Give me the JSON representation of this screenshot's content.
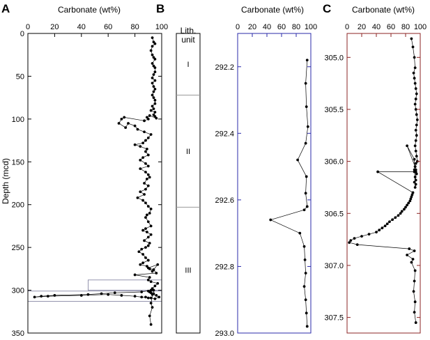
{
  "panel_labels": {
    "a": "A",
    "b": "B",
    "c": "C"
  },
  "colors": {
    "panel_a": "#000000",
    "panel_b": "#2a2aaa",
    "panel_c": "#8b2323"
  },
  "lith": {
    "header_line1": "Lith.",
    "header_line2": "unit",
    "units": [
      {
        "label": "I",
        "top": 0,
        "bottom": 72
      },
      {
        "label": "II",
        "top": 72,
        "bottom": 203
      },
      {
        "label": "III",
        "top": 203,
        "bottom": 350
      }
    ]
  },
  "chart_data": [
    {
      "id": "A",
      "type": "line",
      "xlabel": "Carbonate (wt%)",
      "ylabel": "Depth (mcd)",
      "xlim": [
        0,
        100
      ],
      "ylim": [
        0,
        350
      ],
      "xticks": [
        0,
        20,
        40,
        60,
        80,
        100
      ],
      "yticks": [
        0,
        50,
        100,
        150,
        200,
        250,
        300,
        350
      ],
      "highlight_boxes": [
        {
          "x0": 45,
          "x1": 100,
          "y0": 288,
          "y1": 300
        },
        {
          "x0": 0,
          "x1": 100,
          "y0": 301,
          "y1": 313
        }
      ],
      "series": [
        {
          "x": [
            93,
            94,
            95,
            93,
            92,
            93,
            94,
            95,
            93,
            94,
            95,
            95,
            94,
            93,
            95,
            93,
            94,
            95,
            94,
            93,
            94,
            95,
            95,
            93,
            94,
            92,
            95,
            94,
            95,
            96,
            91,
            89,
            90,
            87,
            72,
            70,
            68,
            73,
            75,
            80,
            82,
            87,
            92,
            90,
            88,
            86,
            80,
            84,
            89,
            88,
            90,
            86,
            84,
            88,
            90,
            84,
            88,
            90,
            91,
            89,
            87,
            90,
            88,
            84,
            87,
            82,
            86,
            88,
            90,
            92,
            91,
            89,
            88,
            90,
            92,
            88,
            86,
            89,
            92,
            90,
            87,
            91,
            90,
            88,
            85,
            83,
            86,
            88,
            90,
            86,
            84,
            89,
            91,
            93,
            97,
            90,
            94,
            96,
            80,
            91,
            90,
            92,
            97,
            95,
            93,
            92,
            85,
            65,
            55,
            45,
            20,
            10,
            5,
            15,
            40,
            60,
            70,
            80,
            85,
            88,
            90,
            92,
            95,
            98,
            96,
            93,
            94,
            92,
            91,
            90,
            94,
            92,
            93,
            91,
            92
          ],
          "y": [
            5,
            10,
            12,
            15,
            20,
            25,
            28,
            30,
            35,
            38,
            40,
            45,
            48,
            52,
            55,
            58,
            62,
            65,
            68,
            72,
            75,
            78,
            82,
            85,
            88,
            90,
            92,
            95,
            97,
            99,
            96,
            98,
            100,
            102,
            98,
            100,
            105,
            110,
            105,
            108,
            112,
            115,
            118,
            122,
            125,
            128,
            130,
            132,
            135,
            138,
            142,
            145,
            148,
            152,
            155,
            158,
            162,
            165,
            168,
            170,
            175,
            178,
            182,
            185,
            188,
            192,
            195,
            198,
            202,
            205,
            210,
            212,
            215,
            220,
            225,
            228,
            230,
            232,
            235,
            238,
            242,
            245,
            248,
            250,
            252,
            255,
            258,
            262,
            265,
            268,
            270,
            272,
            275,
            278,
            270,
            274,
            276,
            280,
            282,
            285,
            288,
            290,
            292,
            295,
            298,
            300,
            302,
            303,
            304,
            305,
            306,
            307,
            308,
            307,
            306,
            305,
            306,
            307,
            308,
            308,
            309,
            309,
            310,
            308,
            306,
            305,
            304,
            303,
            302,
            301,
            300,
            315,
            320,
            330,
            340
          ]
        }
      ]
    },
    {
      "id": "B",
      "type": "line",
      "xlabel": "Carbonate (wt%)",
      "xlim": [
        0,
        100
      ],
      "ylim": [
        292.1,
        293.0
      ],
      "xticks": [
        0,
        20,
        40,
        60,
        80,
        100
      ],
      "yticks": [
        292.2,
        292.4,
        292.6,
        292.8,
        293.0
      ],
      "series": [
        {
          "x": [
            95,
            93,
            94,
            96,
            93,
            82,
            94,
            93,
            95,
            91,
            45,
            85,
            91,
            92,
            93,
            91,
            93,
            94,
            95
          ],
          "y": [
            292.18,
            292.25,
            292.32,
            292.38,
            292.43,
            292.48,
            292.53,
            292.58,
            292.62,
            292.63,
            292.66,
            292.7,
            292.74,
            292.78,
            292.82,
            292.86,
            292.9,
            292.94,
            292.98
          ]
        }
      ]
    },
    {
      "id": "C",
      "type": "line",
      "xlabel": "Carbonate (wt%)",
      "xlim": [
        0,
        100
      ],
      "ylim": [
        304.77,
        307.65
      ],
      "xticks": [
        0,
        20,
        40,
        60,
        80,
        100
      ],
      "yticks": [
        305.0,
        305.5,
        306.0,
        306.5,
        307.0,
        307.5
      ],
      "series": [
        {
          "x": [
            88,
            90,
            92,
            93,
            91,
            92,
            93,
            94,
            95,
            94,
            93,
            94,
            95,
            96,
            95,
            94,
            95,
            94,
            93,
            94,
            95,
            96,
            94,
            93,
            92,
            94,
            95,
            93,
            94,
            92,
            94,
            93,
            92,
            82,
            93,
            94,
            92,
            42,
            90,
            89,
            88,
            87,
            86,
            84,
            82,
            80,
            78,
            75,
            73,
            70,
            66,
            62,
            58,
            55,
            52,
            48,
            44,
            40,
            30,
            20,
            10,
            5,
            3,
            14,
            85,
            92,
            82,
            90,
            88,
            93,
            92,
            91,
            93,
            92,
            94
          ],
          "y": [
            304.82,
            304.9,
            305.0,
            305.1,
            305.15,
            305.2,
            305.25,
            305.3,
            305.35,
            305.4,
            305.45,
            305.5,
            305.55,
            305.6,
            305.65,
            305.7,
            305.75,
            305.8,
            305.85,
            305.9,
            305.95,
            306.0,
            306.02,
            306.05,
            306.08,
            306.1,
            306.12,
            306.15,
            306.18,
            306.2,
            306.22,
            306.25,
            305.98,
            305.85,
            306.05,
            306.08,
            306.1,
            306.1,
            306.3,
            306.32,
            306.34,
            306.36,
            306.38,
            306.4,
            306.42,
            306.44,
            306.46,
            306.48,
            306.5,
            306.52,
            306.54,
            306.56,
            306.58,
            306.6,
            306.62,
            306.64,
            306.66,
            306.68,
            306.7,
            306.72,
            306.74,
            306.76,
            306.78,
            306.8,
            306.84,
            306.86,
            306.9,
            306.94,
            306.97,
            307.05,
            307.15,
            307.25,
            307.35,
            307.45,
            307.55
          ]
        }
      ]
    }
  ]
}
